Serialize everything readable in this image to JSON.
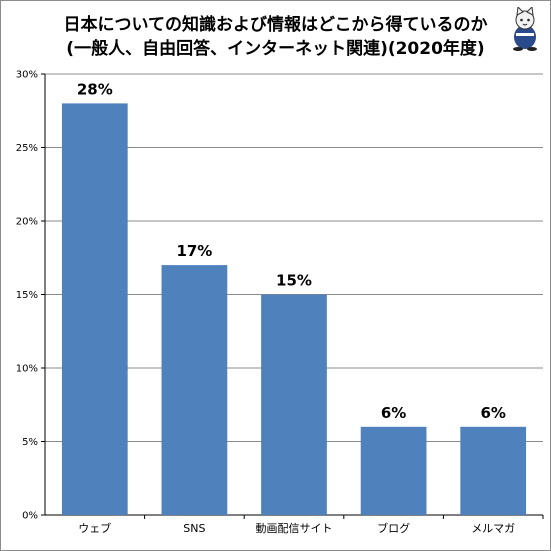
{
  "chart_data": {
    "type": "bar",
    "title_lines": [
      "日本についての知識および情報はどこから得ているのか",
      "(一般人、自由回答、インターネット関連)(2020年度)"
    ],
    "categories": [
      "ウェブ",
      "SNS",
      "動画配信サイト",
      "ブログ",
      "メルマガ"
    ],
    "values": [
      28,
      17,
      15,
      6,
      6
    ],
    "data_labels": [
      "28%",
      "17%",
      "15%",
      "6%",
      "6%"
    ],
    "ylim": [
      0,
      30
    ],
    "yticks": [
      "0%",
      "5%",
      "10%",
      "15%",
      "20%",
      "25%",
      "30%"
    ],
    "grid": true,
    "bar_color": "#4f81bd",
    "grid_color": "#8c8c8c"
  },
  "decoration": {
    "mascot_icon": "cat-mascot-icon"
  }
}
